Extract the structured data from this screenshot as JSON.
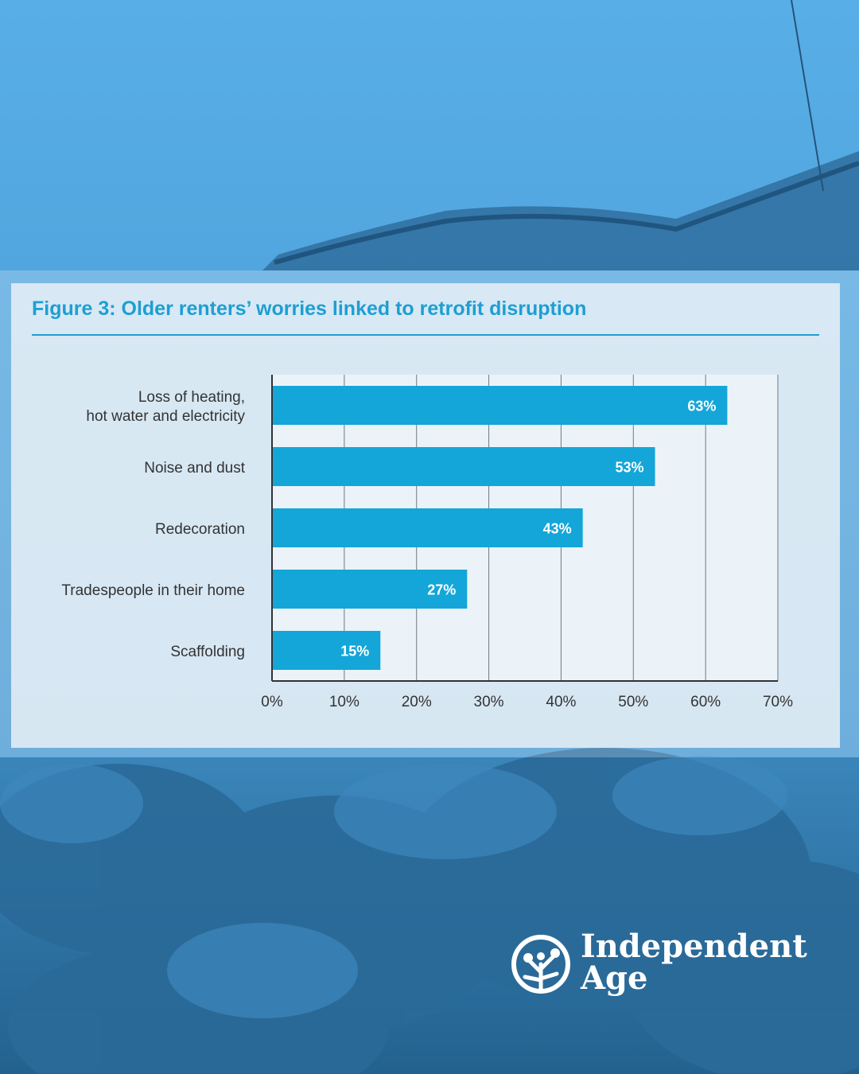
{
  "colors": {
    "bar": "#14a6d8",
    "title": "#1d9fd3",
    "background_sky": "#4fa7e0",
    "background_trees": "#2d6fa0"
  },
  "chart_data": {
    "type": "bar",
    "orientation": "horizontal",
    "title": "Figure 3: Older renters’ worries linked to retrofit disruption",
    "categories": [
      [
        "Loss of heating,",
        "hot water and electricity"
      ],
      [
        "Noise and dust"
      ],
      [
        "Redecoration"
      ],
      [
        "Tradespeople in their home"
      ],
      [
        "Scaffolding"
      ]
    ],
    "values": [
      63,
      53,
      43,
      27,
      15
    ],
    "data_labels": [
      "63%",
      "53%",
      "43%",
      "27%",
      "15%"
    ],
    "xlim": [
      0,
      70
    ],
    "xticks": [
      "0%",
      "10%",
      "20%",
      "30%",
      "40%",
      "50%",
      "60%",
      "70%"
    ],
    "grid": "vertical"
  },
  "logo": {
    "line1": "Independent",
    "line2": "Age"
  }
}
